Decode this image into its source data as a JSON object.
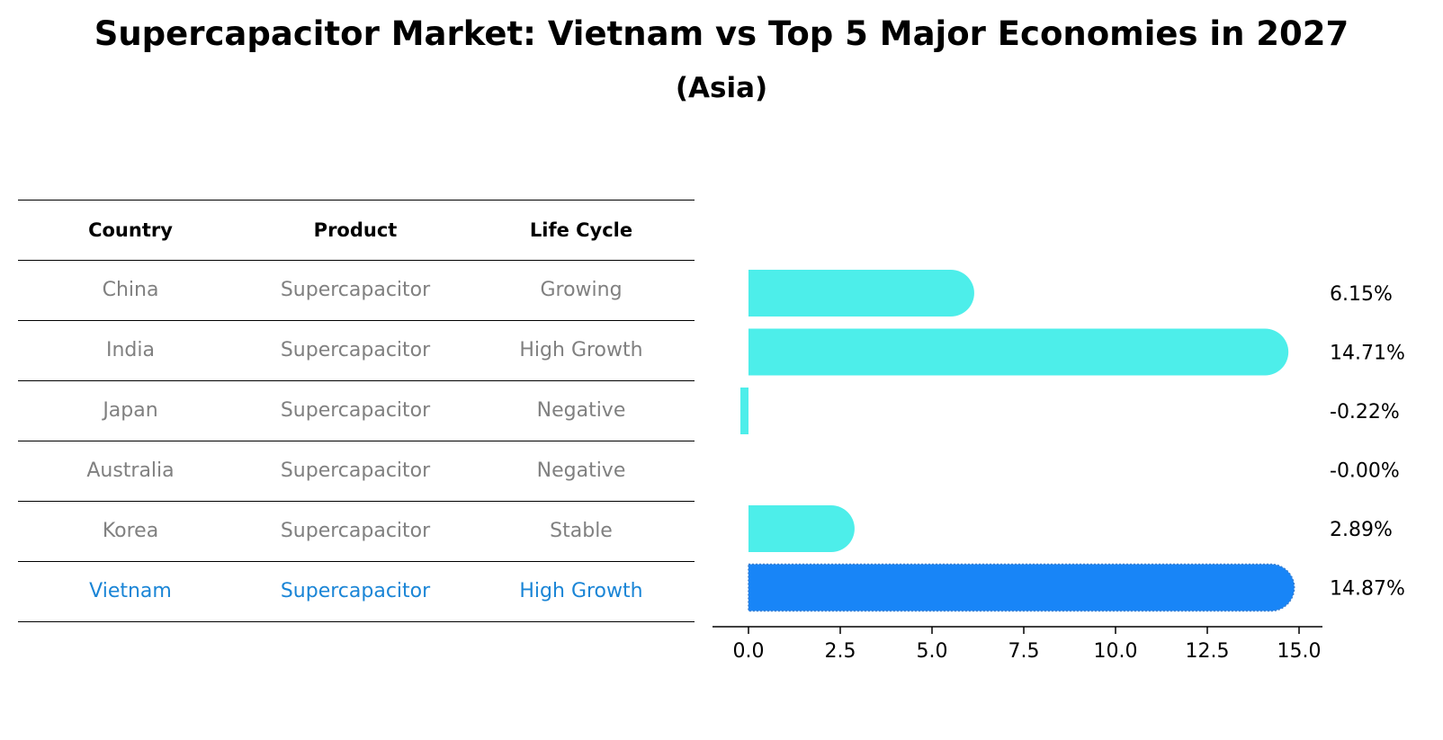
{
  "header": {
    "title": "Supercapacitor Market: Vietnam vs Top 5 Major Economies in 2027",
    "subtitle": "(Asia)"
  },
  "table": {
    "columns": [
      "Country",
      "Product",
      "Life Cycle"
    ],
    "rows": [
      {
        "country": "China",
        "product": "Supercapacitor",
        "life_cycle": "Growing"
      },
      {
        "country": "India",
        "product": "Supercapacitor",
        "life_cycle": "High Growth"
      },
      {
        "country": "Japan",
        "product": "Supercapacitor",
        "life_cycle": "Negative"
      },
      {
        "country": "Australia",
        "product": "Supercapacitor",
        "life_cycle": "Negative"
      },
      {
        "country": "Korea",
        "product": "Supercapacitor",
        "life_cycle": "Stable"
      },
      {
        "country": "Vietnam",
        "product": "Supercapacitor",
        "life_cycle": "High Growth"
      }
    ],
    "highlight_color": "#1a85d6",
    "text_color": "#808080"
  },
  "chart_data": {
    "type": "bar",
    "orientation": "horizontal",
    "categories": [
      "China",
      "India",
      "Japan",
      "Australia",
      "Korea",
      "Vietnam"
    ],
    "values": [
      6.15,
      14.71,
      -0.22,
      -0.0,
      2.89,
      14.87
    ],
    "value_labels": [
      "6.15%",
      "14.71%",
      "-0.22%",
      "-0.00%",
      "2.89%",
      "14.87%"
    ],
    "xlim": [
      -1.0,
      15.6
    ],
    "xticks": [
      0.0,
      2.5,
      5.0,
      7.5,
      10.0,
      12.5,
      15.0
    ],
    "xtick_labels": [
      "0.0",
      "2.5",
      "5.0",
      "7.5",
      "10.0",
      "12.5",
      "15.0"
    ],
    "bar_color": "#4deeea",
    "highlight_color": "#1885f7",
    "highlight_category": "Vietnam",
    "title": "",
    "xlabel": "",
    "ylabel": ""
  }
}
